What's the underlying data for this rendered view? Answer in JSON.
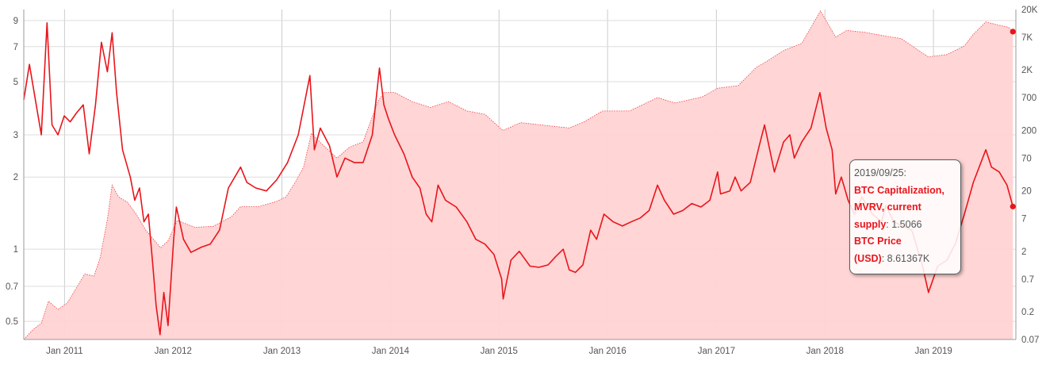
{
  "chart_data": {
    "type": "line",
    "x_ticks": [
      "Jan 2011",
      "Jan 2012",
      "Jan 2013",
      "Jan 2014",
      "Jan 2015",
      "Jan 2016",
      "Jan 2017",
      "Jan 2018",
      "Jan 2019"
    ],
    "y_left_ticks": [
      "9",
      "7",
      "5",
      "3",
      "2",
      "1",
      "0.7",
      "0.5"
    ],
    "y_right_ticks": [
      "20K",
      "7K",
      "2K",
      "700",
      "200",
      "70",
      "20",
      "7",
      "2",
      "0.7",
      "0.2",
      "0.07"
    ],
    "y_left_scale": "log",
    "y_right_scale": "log",
    "y_left_range": [
      0.42,
      10
    ],
    "y_right_range": [
      0.07,
      20000
    ],
    "grid": true,
    "colors": {
      "mvrv_line": "#e8151b",
      "price_area": "#ffd3d3",
      "price_edge": "#e8151b"
    },
    "series": [
      {
        "axis": "left",
        "kind": "line",
        "points": [
          [
            "2010-08-17",
            4.2
          ],
          [
            "2010-09-05",
            5.9
          ],
          [
            "2010-09-25",
            4.2
          ],
          [
            "2010-10-15",
            3.0
          ],
          [
            "2010-11-03",
            8.8
          ],
          [
            "2010-11-20",
            3.3
          ],
          [
            "2010-12-10",
            3.0
          ],
          [
            "2010-12-31",
            3.6
          ],
          [
            "2011-01-20",
            3.4
          ],
          [
            "2011-02-10",
            3.7
          ],
          [
            "2011-03-05",
            4.0
          ],
          [
            "2011-03-25",
            2.5
          ],
          [
            "2011-04-15",
            4.0
          ],
          [
            "2011-05-05",
            7.3
          ],
          [
            "2011-05-25",
            5.5
          ],
          [
            "2011-06-10",
            8.0
          ],
          [
            "2011-06-25",
            4.5
          ],
          [
            "2011-07-15",
            2.6
          ],
          [
            "2011-08-10",
            2.0
          ],
          [
            "2011-08-25",
            1.6
          ],
          [
            "2011-09-10",
            1.8
          ],
          [
            "2011-09-25",
            1.3
          ],
          [
            "2011-10-10",
            1.4
          ],
          [
            "2011-10-25",
            0.85
          ],
          [
            "2011-11-05",
            0.58
          ],
          [
            "2011-11-18",
            0.44
          ],
          [
            "2011-12-01",
            0.66
          ],
          [
            "2011-12-15",
            0.48
          ],
          [
            "2012-01-03",
            1.1
          ],
          [
            "2012-01-12",
            1.5
          ],
          [
            "2012-02-05",
            1.1
          ],
          [
            "2012-03-01",
            0.97
          ],
          [
            "2012-04-05",
            1.02
          ],
          [
            "2012-05-05",
            1.05
          ],
          [
            "2012-06-05",
            1.2
          ],
          [
            "2012-07-05",
            1.8
          ],
          [
            "2012-08-15",
            2.2
          ],
          [
            "2012-09-05",
            1.9
          ],
          [
            "2012-10-05",
            1.8
          ],
          [
            "2012-11-10",
            1.75
          ],
          [
            "2012-12-15",
            1.95
          ],
          [
            "2013-01-20",
            2.3
          ],
          [
            "2013-02-25",
            3.0
          ],
          [
            "2013-04-05",
            5.3
          ],
          [
            "2013-04-20",
            2.6
          ],
          [
            "2013-05-10",
            3.2
          ],
          [
            "2013-06-10",
            2.7
          ],
          [
            "2013-07-05",
            2.0
          ],
          [
            "2013-08-01",
            2.4
          ],
          [
            "2013-09-01",
            2.3
          ],
          [
            "2013-10-01",
            2.3
          ],
          [
            "2013-11-01",
            3.0
          ],
          [
            "2013-11-25",
            5.7
          ],
          [
            "2013-12-10",
            4.0
          ],
          [
            "2013-12-25",
            3.5
          ],
          [
            "2014-01-15",
            3.0
          ],
          [
            "2014-02-15",
            2.5
          ],
          [
            "2014-03-15",
            2.0
          ],
          [
            "2014-04-10",
            1.8
          ],
          [
            "2014-05-01",
            1.4
          ],
          [
            "2014-05-20",
            1.3
          ],
          [
            "2014-06-10",
            1.85
          ],
          [
            "2014-07-05",
            1.6
          ],
          [
            "2014-08-10",
            1.5
          ],
          [
            "2014-09-15",
            1.3
          ],
          [
            "2014-10-15",
            1.1
          ],
          [
            "2014-11-15",
            1.05
          ],
          [
            "2014-12-15",
            0.95
          ],
          [
            "2015-01-10",
            0.75
          ],
          [
            "2015-01-15",
            0.62
          ],
          [
            "2015-02-10",
            0.9
          ],
          [
            "2015-03-10",
            0.98
          ],
          [
            "2015-04-15",
            0.85
          ],
          [
            "2015-05-15",
            0.84
          ],
          [
            "2015-06-15",
            0.86
          ],
          [
            "2015-07-10",
            0.93
          ],
          [
            "2015-08-05",
            1.0
          ],
          [
            "2015-08-25",
            0.82
          ],
          [
            "2015-09-15",
            0.8
          ],
          [
            "2015-10-10",
            0.86
          ],
          [
            "2015-11-05",
            1.2
          ],
          [
            "2015-11-25",
            1.1
          ],
          [
            "2015-12-20",
            1.4
          ],
          [
            "2016-01-20",
            1.3
          ],
          [
            "2016-02-20",
            1.25
          ],
          [
            "2016-03-20",
            1.3
          ],
          [
            "2016-04-20",
            1.35
          ],
          [
            "2016-05-20",
            1.45
          ],
          [
            "2016-06-17",
            1.85
          ],
          [
            "2016-07-10",
            1.6
          ],
          [
            "2016-08-10",
            1.4
          ],
          [
            "2016-09-10",
            1.45
          ],
          [
            "2016-10-10",
            1.55
          ],
          [
            "2016-11-10",
            1.5
          ],
          [
            "2016-12-10",
            1.6
          ],
          [
            "2017-01-05",
            2.1
          ],
          [
            "2017-01-15",
            1.7
          ],
          [
            "2017-02-15",
            1.75
          ],
          [
            "2017-03-05",
            2.0
          ],
          [
            "2017-03-25",
            1.75
          ],
          [
            "2017-04-25",
            1.9
          ],
          [
            "2017-05-25",
            2.7
          ],
          [
            "2017-06-12",
            3.3
          ],
          [
            "2017-07-15",
            2.1
          ],
          [
            "2017-08-15",
            2.8
          ],
          [
            "2017-09-05",
            3.0
          ],
          [
            "2017-09-20",
            2.4
          ],
          [
            "2017-10-15",
            2.8
          ],
          [
            "2017-11-15",
            3.2
          ],
          [
            "2017-12-15",
            4.5
          ],
          [
            "2018-01-05",
            3.2
          ],
          [
            "2018-01-25",
            2.6
          ],
          [
            "2018-02-06",
            1.7
          ],
          [
            "2018-02-25",
            2.0
          ],
          [
            "2018-03-20",
            1.6
          ],
          [
            "2018-04-10",
            1.4
          ],
          [
            "2018-05-05",
            1.65
          ],
          [
            "2018-06-10",
            1.4
          ],
          [
            "2018-07-10",
            1.3
          ],
          [
            "2018-07-25",
            1.52
          ],
          [
            "2018-08-20",
            1.3
          ],
          [
            "2018-09-20",
            1.25
          ],
          [
            "2018-10-20",
            1.2
          ],
          [
            "2018-11-25",
            0.85
          ],
          [
            "2018-12-15",
            0.66
          ],
          [
            "2019-01-15",
            0.85
          ],
          [
            "2019-02-15",
            0.9
          ],
          [
            "2019-03-15",
            1.05
          ],
          [
            "2019-04-15",
            1.4
          ],
          [
            "2019-05-15",
            1.9
          ],
          [
            "2019-06-26",
            2.6
          ],
          [
            "2019-07-15",
            2.2
          ],
          [
            "2019-08-10",
            2.1
          ],
          [
            "2019-09-05",
            1.85
          ],
          [
            "2019-09-25",
            1.5066
          ]
        ]
      },
      {
        "axis": "right",
        "kind": "area",
        "points": [
          [
            "2010-08-17",
            0.07
          ],
          [
            "2010-09-15",
            0.1
          ],
          [
            "2010-10-15",
            0.13
          ],
          [
            "2010-11-08",
            0.3
          ],
          [
            "2010-12-10",
            0.22
          ],
          [
            "2011-01-10",
            0.28
          ],
          [
            "2011-02-10",
            0.5
          ],
          [
            "2011-03-10",
            0.85
          ],
          [
            "2011-04-10",
            0.78
          ],
          [
            "2011-05-01",
            1.6
          ],
          [
            "2011-05-25",
            6.8
          ],
          [
            "2011-06-10",
            25
          ],
          [
            "2011-07-01",
            16
          ],
          [
            "2011-08-01",
            13
          ],
          [
            "2011-09-01",
            8
          ],
          [
            "2011-10-01",
            4.5
          ],
          [
            "2011-11-20",
            2.3
          ],
          [
            "2011-12-15",
            3.0
          ],
          [
            "2012-01-15",
            6.5
          ],
          [
            "2012-03-15",
            5.0
          ],
          [
            "2012-05-15",
            5.2
          ],
          [
            "2012-07-15",
            7.5
          ],
          [
            "2012-08-15",
            11
          ],
          [
            "2012-10-15",
            11
          ],
          [
            "2012-12-15",
            13.5
          ],
          [
            "2013-01-15",
            16
          ],
          [
            "2013-02-15",
            28
          ],
          [
            "2013-03-15",
            50
          ],
          [
            "2013-04-10",
            180
          ],
          [
            "2013-05-15",
            120
          ],
          [
            "2013-07-05",
            70
          ],
          [
            "2013-08-15",
            105
          ],
          [
            "2013-10-01",
            130
          ],
          [
            "2013-11-20",
            600
          ],
          [
            "2013-12-10",
            850
          ],
          [
            "2014-01-15",
            850
          ],
          [
            "2014-03-15",
            600
          ],
          [
            "2014-05-15",
            480
          ],
          [
            "2014-07-15",
            600
          ],
          [
            "2014-09-15",
            420
          ],
          [
            "2014-11-15",
            370
          ],
          [
            "2015-01-14",
            200
          ],
          [
            "2015-03-15",
            270
          ],
          [
            "2015-06-15",
            240
          ],
          [
            "2015-08-25",
            220
          ],
          [
            "2015-10-15",
            280
          ],
          [
            "2015-12-15",
            420
          ],
          [
            "2016-03-15",
            420
          ],
          [
            "2016-06-17",
            700
          ],
          [
            "2016-08-15",
            570
          ],
          [
            "2016-11-15",
            720
          ],
          [
            "2017-01-05",
            1000
          ],
          [
            "2017-03-15",
            1100
          ],
          [
            "2017-05-15",
            2200
          ],
          [
            "2017-06-15",
            2700
          ],
          [
            "2017-08-15",
            4200
          ],
          [
            "2017-10-15",
            5500
          ],
          [
            "2017-12-17",
            19000
          ],
          [
            "2018-02-06",
            7000
          ],
          [
            "2018-03-15",
            9000
          ],
          [
            "2018-05-15",
            8400
          ],
          [
            "2018-07-15",
            7400
          ],
          [
            "2018-09-15",
            6600
          ],
          [
            "2018-11-25",
            3800
          ],
          [
            "2018-12-15",
            3300
          ],
          [
            "2019-02-15",
            3600
          ],
          [
            "2019-04-15",
            5000
          ],
          [
            "2019-05-15",
            7800
          ],
          [
            "2019-06-26",
            12500
          ],
          [
            "2019-08-10",
            11000
          ],
          [
            "2019-09-10",
            10200
          ],
          [
            "2019-09-25",
            8613.67
          ]
        ]
      }
    ]
  },
  "tooltip": {
    "date": "2019/09/25:",
    "mvrv_label_1": "BTC Capitalization,",
    "mvrv_label_2": "MVRV, current",
    "mvrv_label_3": "supply",
    "mvrv_value": ": 1.5066",
    "price_label_1": "BTC Price",
    "price_label_2": "(USD)",
    "price_value": ": 8.61367K"
  }
}
